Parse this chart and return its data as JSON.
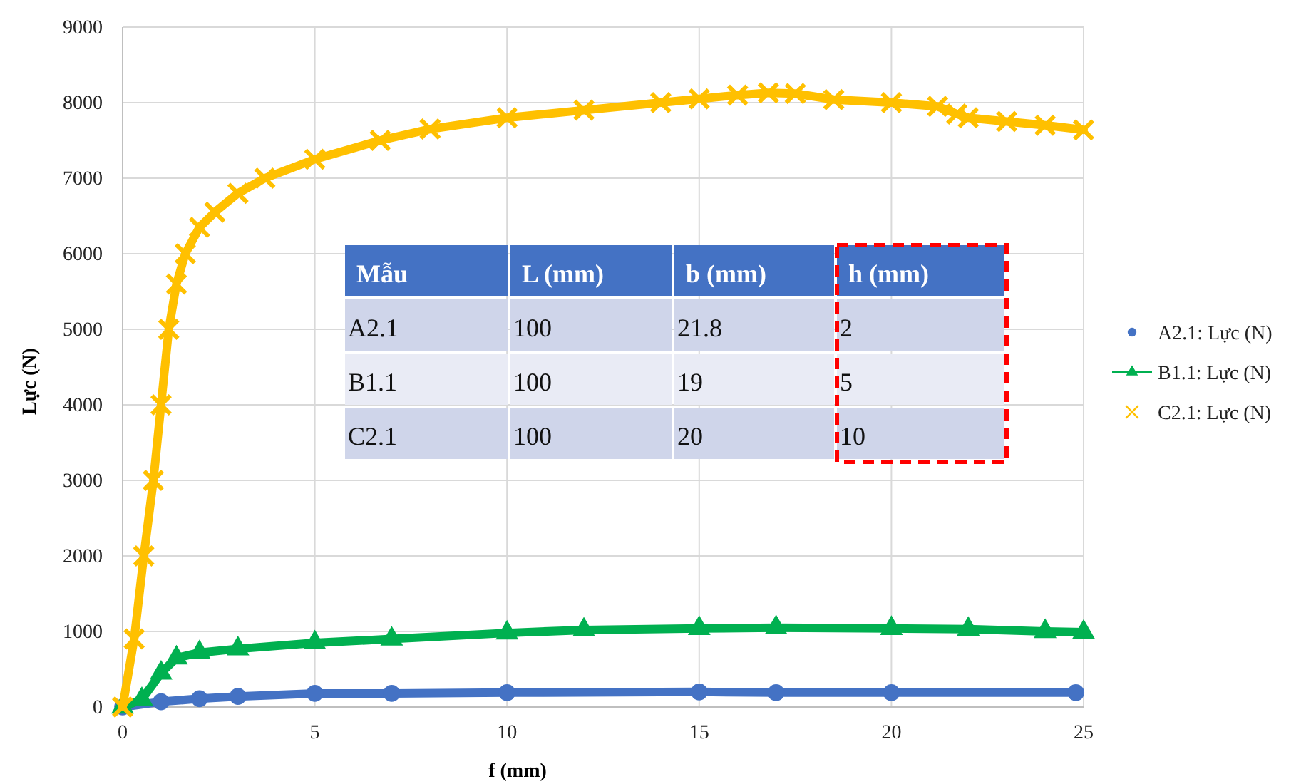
{
  "chart_data": [
    {
      "type": "line",
      "xlabel": "f (mm)",
      "ylabel": "Lực (N)",
      "xlim": [
        0,
        25
      ],
      "xticks": [
        0,
        5,
        10,
        15,
        20,
        25
      ],
      "ylim": [
        0,
        9000
      ],
      "yticks": [
        0,
        1000,
        2000,
        3000,
        4000,
        5000,
        6000,
        7000,
        8000,
        9000
      ],
      "grid": true,
      "legend": "right",
      "series": [
        {
          "name": "A2.1: Lực (N)",
          "color": "#4472c4",
          "marker": "circle",
          "x": [
            0,
            1,
            2,
            3,
            5,
            7,
            10,
            15,
            17,
            20,
            24.8
          ],
          "values": [
            0,
            70,
            110,
            140,
            180,
            180,
            190,
            200,
            190,
            190,
            190
          ]
        },
        {
          "name": "B1.1: Lực (N)",
          "color": "#00b050",
          "marker": "triangle",
          "x": [
            0,
            0.5,
            1,
            1.4,
            2,
            3,
            5,
            7,
            10,
            12,
            15,
            17,
            20,
            22,
            24,
            25
          ],
          "values": [
            0,
            100,
            450,
            650,
            720,
            770,
            850,
            900,
            980,
            1020,
            1040,
            1050,
            1040,
            1030,
            1000,
            990
          ]
        },
        {
          "name": "C2.1: Lực (N)",
          "color": "#ffc000",
          "marker": "cross",
          "x": [
            0,
            0.3,
            0.55,
            0.8,
            1,
            1.2,
            1.4,
            1.63,
            2,
            2.4,
            3,
            3.7,
            5,
            6.7,
            8,
            10,
            12,
            14,
            15,
            16,
            16.8,
            17.5,
            18.5,
            20,
            21.2,
            21.7,
            22,
            23,
            24,
            25
          ],
          "values": [
            0,
            900,
            2000,
            3000,
            4000,
            5000,
            5600,
            6000,
            6350,
            6550,
            6800,
            7000,
            7250,
            7500,
            7650,
            7800,
            7900,
            8000,
            8050,
            8100,
            8130,
            8120,
            8040,
            8000,
            7950,
            7850,
            7800,
            7750,
            7700,
            7640
          ]
        }
      ]
    },
    {
      "type": "other",
      "categories": [
        "Mẫu",
        "L (mm)",
        "b (mm)",
        "h (mm)"
      ],
      "cell_labels": [
        [
          "A2.1",
          "100",
          "21.8",
          "2"
        ],
        [
          "B1.1",
          "100",
          "19",
          "5"
        ],
        [
          "C2.1",
          "100",
          "20",
          "10"
        ]
      ]
    }
  ]
}
